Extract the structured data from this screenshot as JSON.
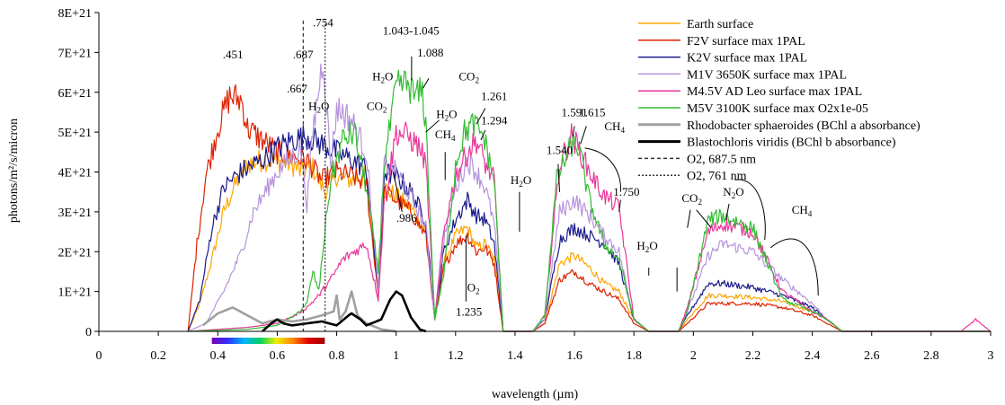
{
  "chart_data": {
    "type": "line",
    "title": "",
    "xlabel": "wavelength (µm)",
    "ylabel": "photons/m²/s/micron",
    "xlim": [
      0,
      3
    ],
    "ylim": [
      0,
      8e+21
    ],
    "x_ticks": [
      0,
      0.2,
      0.4,
      0.6,
      0.8,
      1,
      1.2,
      1.4,
      1.6,
      1.8,
      2,
      2.2,
      2.4,
      2.6,
      2.8,
      3
    ],
    "x_tick_labels": [
      "0",
      "0.2",
      "0.4",
      "0.6",
      "0.8",
      "1",
      "1.2",
      "1.4",
      "1.6",
      "1.8",
      "2",
      "2.2",
      "2.4",
      "2.6",
      "2.8",
      "3"
    ],
    "y_ticks": [
      0,
      1e+21,
      2e+21,
      3e+21,
      4e+21,
      5e+21,
      6e+21,
      7e+21,
      8e+21
    ],
    "y_tick_labels": [
      "0",
      "1E+21",
      "2E+21",
      "3E+21",
      "4E+21",
      "5E+21",
      "6E+21",
      "7E+21",
      "8E+21"
    ],
    "grid": false,
    "legend_position": "top-right",
    "series": [
      {
        "name": "Earth surface",
        "color": "#ffa500",
        "style": "solid",
        "x": [
          0.3,
          0.34,
          0.38,
          0.42,
          0.46,
          0.5,
          0.55,
          0.6,
          0.65,
          0.68,
          0.72,
          0.76,
          0.8,
          0.85,
          0.9,
          0.94,
          0.96,
          1.0,
          1.05,
          1.1,
          1.13,
          1.16,
          1.2,
          1.24,
          1.27,
          1.3,
          1.33,
          1.36,
          1.4,
          1.46,
          1.5,
          1.55,
          1.6,
          1.65,
          1.7,
          1.75,
          1.8,
          1.85,
          1.95,
          1.98,
          2.05,
          2.1,
          2.2,
          2.3,
          2.4,
          2.45,
          2.5,
          2.6,
          3.0
        ],
        "y": [
          0,
          7e+20,
          1.8e+21,
          3e+21,
          3.7e+21,
          4.2e+21,
          4.3e+21,
          4.3e+21,
          4.2e+21,
          4e+21,
          4.1e+21,
          3.5e+21,
          3.9e+21,
          3.8e+21,
          3.9e+21,
          1e+21,
          3.6e+21,
          3.4e+21,
          3.1e+21,
          2.5e+21,
          3e+20,
          1.7e+21,
          2.4e+21,
          2.6e+21,
          2.1e+21,
          2.2e+21,
          1.8e+21,
          0,
          0,
          0,
          2e+20,
          1.7e+21,
          1.9e+21,
          1.6e+21,
          1.2e+21,
          1e+21,
          3e+20,
          0,
          0,
          3e+20,
          9e+20,
          9e+20,
          8.5e+20,
          7.5e+20,
          5e+20,
          3e+20,
          0,
          0,
          0
        ]
      },
      {
        "name": "F2V surface max 1PAL",
        "color": "#dd2200",
        "style": "solid",
        "x": [
          0.3,
          0.33,
          0.36,
          0.4,
          0.44,
          0.48,
          0.5,
          0.55,
          0.6,
          0.65,
          0.7,
          0.75,
          0.8,
          0.85,
          0.9,
          0.94,
          0.96,
          1.0,
          1.05,
          1.1,
          1.13,
          1.16,
          1.2,
          1.24,
          1.27,
          1.3,
          1.33,
          1.36,
          1.4,
          1.46,
          1.5,
          1.55,
          1.6,
          1.65,
          1.7,
          1.75,
          1.8,
          1.85,
          1.95,
          1.98,
          2.05,
          2.1,
          2.2,
          2.3,
          2.4,
          2.45,
          2.5,
          2.6,
          3.0
        ],
        "y": [
          0,
          2.2e+21,
          3.9e+21,
          5.1e+21,
          5.9e+21,
          5.8e+21,
          5.1e+21,
          4.8e+21,
          4.5e+21,
          4.4e+21,
          4.3e+21,
          3.8e+21,
          4e+21,
          3.9e+21,
          3.7e+21,
          9e+20,
          3.5e+21,
          3.3e+21,
          3e+21,
          2.4e+21,
          3e+20,
          1.6e+21,
          2.2e+21,
          2.4e+21,
          2e+21,
          2.1e+21,
          1.7e+21,
          0,
          0,
          0,
          2e+20,
          1.3e+21,
          1.5e+21,
          1.2e+21,
          1e+21,
          8e+20,
          2e+20,
          0,
          0,
          2e+20,
          7e+20,
          7e+20,
          7e+20,
          6e+20,
          4e+20,
          2e+20,
          0,
          0,
          0
        ]
      },
      {
        "name": "K2V surface max 1PAL",
        "color": "#1a1a8c",
        "style": "solid",
        "x": [
          0.3,
          0.34,
          0.38,
          0.42,
          0.46,
          0.5,
          0.55,
          0.6,
          0.65,
          0.7,
          0.75,
          0.8,
          0.85,
          0.9,
          0.94,
          0.96,
          1.0,
          1.05,
          1.1,
          1.13,
          1.16,
          1.2,
          1.24,
          1.27,
          1.3,
          1.33,
          1.36,
          1.4,
          1.46,
          1.5,
          1.55,
          1.6,
          1.65,
          1.7,
          1.75,
          1.8,
          1.85,
          1.95,
          1.98,
          2.05,
          2.1,
          2.2,
          2.3,
          2.4,
          2.45,
          2.5,
          2.6,
          3.0
        ],
        "y": [
          0,
          8e+20,
          2.6e+21,
          3.6e+21,
          3.9e+21,
          4.1e+21,
          4.3e+21,
          4.6e+21,
          4.8e+21,
          4.9e+21,
          4.7e+21,
          4.5e+21,
          4.3e+21,
          4.1e+21,
          1e+21,
          4e+21,
          3.9e+21,
          3.5e+21,
          2.8e+21,
          3e+20,
          2e+21,
          2.8e+21,
          3.3e+21,
          2.9e+21,
          2.8e+21,
          2.2e+21,
          0,
          0,
          0,
          3e+20,
          2.3e+21,
          2.6e+21,
          2.4e+21,
          2.2e+21,
          1.7e+21,
          3e+20,
          0,
          0,
          4e+20,
          1.2e+21,
          1.2e+21,
          1.1e+21,
          9e+20,
          6e+20,
          3e+20,
          0,
          0,
          0
        ]
      },
      {
        "name": "M1V 3650K surface max 1PAL",
        "color": "#b694dc",
        "style": "solid",
        "x": [
          0.3,
          0.36,
          0.42,
          0.48,
          0.52,
          0.56,
          0.6,
          0.64,
          0.68,
          0.7,
          0.72,
          0.754,
          0.78,
          0.8,
          0.82,
          0.85,
          0.9,
          0.94,
          0.96,
          1.0,
          1.05,
          1.1,
          1.13,
          1.16,
          1.2,
          1.24,
          1.27,
          1.3,
          1.33,
          1.36,
          1.4,
          1.46,
          1.5,
          1.55,
          1.6,
          1.65,
          1.7,
          1.75,
          1.8,
          1.85,
          1.95,
          1.98,
          2.05,
          2.1,
          2.2,
          2.3,
          2.4,
          2.45,
          2.5,
          2.6,
          3.0
        ],
        "y": [
          0,
          2e+20,
          1e+21,
          2e+21,
          3e+21,
          3.5e+21,
          4e+21,
          4.3e+21,
          4.6e+21,
          3.2e+21,
          5e+21,
          6.9e+21,
          4.2e+21,
          5.6e+21,
          5.5e+21,
          5.3e+21,
          4.5e+21,
          1e+21,
          4.2e+21,
          4e+21,
          3.4e+21,
          2.6e+21,
          3e+20,
          2.3e+21,
          3.6e+21,
          4.3e+21,
          4e+21,
          3.6e+21,
          2.7e+21,
          0,
          0,
          0,
          3e+20,
          3e+21,
          3.3e+21,
          2.9e+21,
          2.4e+21,
          2e+21,
          3e+20,
          0,
          0,
          5e+20,
          1.9e+21,
          2.2e+21,
          2e+21,
          1.3e+21,
          7e+20,
          3e+20,
          0,
          0,
          0
        ]
      },
      {
        "name": "M4.5V AD Leo surface max 1PAL",
        "color": "#e8389a",
        "style": "solid",
        "x": [
          0.3,
          0.4,
          0.5,
          0.6,
          0.66,
          0.7,
          0.74,
          0.78,
          0.82,
          0.86,
          0.9,
          0.94,
          0.96,
          1.0,
          1.04,
          1.08,
          1.1,
          1.13,
          1.16,
          1.2,
          1.24,
          1.27,
          1.3,
          1.33,
          1.36,
          1.4,
          1.46,
          1.5,
          1.55,
          1.59,
          1.62,
          1.65,
          1.7,
          1.75,
          1.8,
          1.85,
          1.95,
          1.98,
          2.05,
          2.1,
          2.2,
          2.3,
          2.4,
          2.45,
          2.5,
          2.6,
          2.9,
          2.95,
          3.0
        ],
        "y": [
          0,
          5e+19,
          1e+20,
          2e+20,
          4e+20,
          6e+20,
          9e+20,
          1.3e+21,
          1.8e+21,
          2e+21,
          2.2e+21,
          8e+20,
          3.2e+21,
          5e+21,
          4.9e+21,
          4.6e+21,
          4.2e+21,
          3e+20,
          2.5e+21,
          3.9e+21,
          4.5e+21,
          4.8e+21,
          4.2e+21,
          3.8e+21,
          0,
          0,
          0,
          4e+20,
          4.2e+21,
          4.9e+21,
          4.5e+21,
          4e+21,
          3.4e+21,
          3.1e+21,
          3e+20,
          0,
          0,
          6e+20,
          2.5e+21,
          2.7e+21,
          2.5e+21,
          1e+21,
          5e+20,
          3e+20,
          0,
          0,
          0,
          3e+20,
          0
        ]
      },
      {
        "name": "M5V 3100K surface max O2x1e-05",
        "color": "#33bb33",
        "style": "solid",
        "x": [
          0.3,
          0.5,
          0.6,
          0.66,
          0.7,
          0.72,
          0.74,
          0.76,
          0.78,
          0.82,
          0.86,
          0.9,
          0.94,
          0.96,
          1.0,
          1.02,
          1.043,
          1.06,
          1.088,
          1.1,
          1.13,
          1.16,
          1.2,
          1.23,
          1.261,
          1.294,
          1.33,
          1.36,
          1.4,
          1.46,
          1.5,
          1.54,
          1.591,
          1.615,
          1.65,
          1.7,
          1.75,
          1.8,
          1.85,
          1.95,
          1.98,
          2.05,
          2.1,
          2.2,
          2.3,
          2.4,
          2.45,
          2.5,
          2.6,
          3.0
        ],
        "y": [
          0,
          5e+19,
          1.5e+20,
          4e+20,
          7e+20,
          1.5e+21,
          1e+21,
          2.5e+21,
          3.8e+21,
          4.8e+21,
          5e+21,
          3.6e+21,
          1.5e+21,
          4.2e+21,
          6.1e+21,
          6.2e+21,
          6.2e+21,
          5.9e+21,
          6e+21,
          5.2e+21,
          3e+20,
          1.4e+21,
          4.2e+21,
          5e+21,
          5.2e+21,
          4.9e+21,
          3.8e+21,
          0,
          0,
          0,
          4e+20,
          3.8e+21,
          4.7e+21,
          4.6e+21,
          3.3e+21,
          2.2e+21,
          1.8e+21,
          3e+20,
          0,
          0,
          5e+20,
          2.8e+21,
          2.9e+21,
          2.6e+21,
          8e+20,
          5e+20,
          3e+20,
          0,
          0,
          0
        ]
      },
      {
        "name": "Rhodobacter sphaeroides (BChl a absorbance)",
        "color": "#a0a0a0",
        "style": "solid",
        "thick": true,
        "x": [
          0.35,
          0.4,
          0.45,
          0.5,
          0.55,
          0.6,
          0.65,
          0.7,
          0.75,
          0.79,
          0.8,
          0.81,
          0.83,
          0.85,
          0.87,
          0.9,
          0.95,
          1.0
        ],
        "y": [
          1.5e+20,
          4.5e+20,
          6e+20,
          4e+20,
          2e+20,
          3e+20,
          2.5e+20,
          3e+20,
          4e+20,
          5e+20,
          9e+20,
          3e+20,
          5e+20,
          1e+21,
          4e+20,
          2e+20,
          5e+19,
          0
        ]
      },
      {
        "name": "Blastochloris viridis (BChl b absorbance)",
        "color": "#000000",
        "style": "solid",
        "thick": true,
        "x": [
          0.55,
          0.58,
          0.6,
          0.62,
          0.65,
          0.7,
          0.75,
          0.8,
          0.84,
          0.85,
          0.88,
          0.9,
          0.95,
          0.98,
          1.0,
          1.02,
          1.05,
          1.08,
          1.1
        ],
        "y": [
          0,
          2e+20,
          3e+20,
          2e+20,
          1.5e+20,
          2e+20,
          2.5e+20,
          1.5e+20,
          4e+20,
          4.5e+20,
          3e+20,
          1.5e+20,
          3e+20,
          8e+20,
          1e+21,
          9e+20,
          3.5e+20,
          5e+19,
          0
        ]
      },
      {
        "name": "O2, 687.5 nm",
        "color": "#333333",
        "style": "dashed",
        "vertical": 0.6875
      },
      {
        "name": "O2, 761 nm",
        "color": "#333333",
        "style": "dotted",
        "vertical": 0.761
      }
    ],
    "annotations": [
      {
        "text": ".451",
        "x": 0.451,
        "y": 6.85e+21
      },
      {
        "text": ".667",
        "x": 0.667,
        "y": 6e+21
      },
      {
        "text": ".687",
        "x": 0.687,
        "y": 6.85e+21
      },
      {
        "text": ".754",
        "x": 0.754,
        "y": 7.65e+21
      },
      {
        "text": "H2O",
        "x": 0.74,
        "y": 5.55e+21,
        "sub": true
      },
      {
        "text": "CO2",
        "x": 0.935,
        "y": 5.55e+21,
        "sub": true
      },
      {
        "text": "H2O",
        "x": 0.955,
        "y": 6.3e+21,
        "sub": true
      },
      {
        "text": "1.043-1.045",
        "x": 1.05,
        "y": 7.45e+21
      },
      {
        "text": "1.088",
        "x": 1.115,
        "y": 6.9e+21
      },
      {
        "text": "CO2",
        "x": 1.245,
        "y": 6.3e+21,
        "sub": true
      },
      {
        "text": "1.261",
        "x": 1.33,
        "y": 5.8e+21
      },
      {
        "text": "H2O",
        "x": 1.17,
        "y": 5.35e+21,
        "sub": true
      },
      {
        "text": "1.294",
        "x": 1.33,
        "y": 5.2e+21
      },
      {
        "text": "CH4",
        "x": 1.165,
        "y": 4.85e+21,
        "sub": true
      },
      {
        "text": ".986",
        "x": 1.035,
        "y": 2.75e+21
      },
      {
        "text": "O2",
        "x": 1.26,
        "y": 1e+21,
        "sub": true
      },
      {
        "text": "1.235",
        "x": 1.245,
        "y": 4e+20
      },
      {
        "text": "1.540",
        "x": 1.55,
        "y": 4.45e+21
      },
      {
        "text": "1.591",
        "x": 1.6,
        "y": 5.4e+21
      },
      {
        "text": "1.615",
        "x": 1.66,
        "y": 5.4e+21
      },
      {
        "text": "CH4",
        "x": 1.735,
        "y": 5.05e+21,
        "sub": true
      },
      {
        "text": "H2O",
        "x": 1.42,
        "y": 3.7e+21,
        "sub": true
      },
      {
        "text": "1.750",
        "x": 1.775,
        "y": 3.4e+21
      },
      {
        "text": "H2O",
        "x": 1.845,
        "y": 2.05e+21,
        "sub": true
      },
      {
        "text": "CO2",
        "x": 1.995,
        "y": 3.25e+21,
        "sub": true
      },
      {
        "text": "N2O",
        "x": 2.135,
        "y": 3.4e+21,
        "sub": true
      },
      {
        "text": "CH4",
        "x": 2.365,
        "y": 2.95e+21,
        "sub": true
      }
    ],
    "colorbar": {
      "x_start": 0.38,
      "x_end": 0.76,
      "colors": [
        "#7a00b8",
        "#3030ff",
        "#00b8ff",
        "#00d060",
        "#f0f000",
        "#ff8800",
        "#e00000",
        "#a00000"
      ]
    }
  }
}
